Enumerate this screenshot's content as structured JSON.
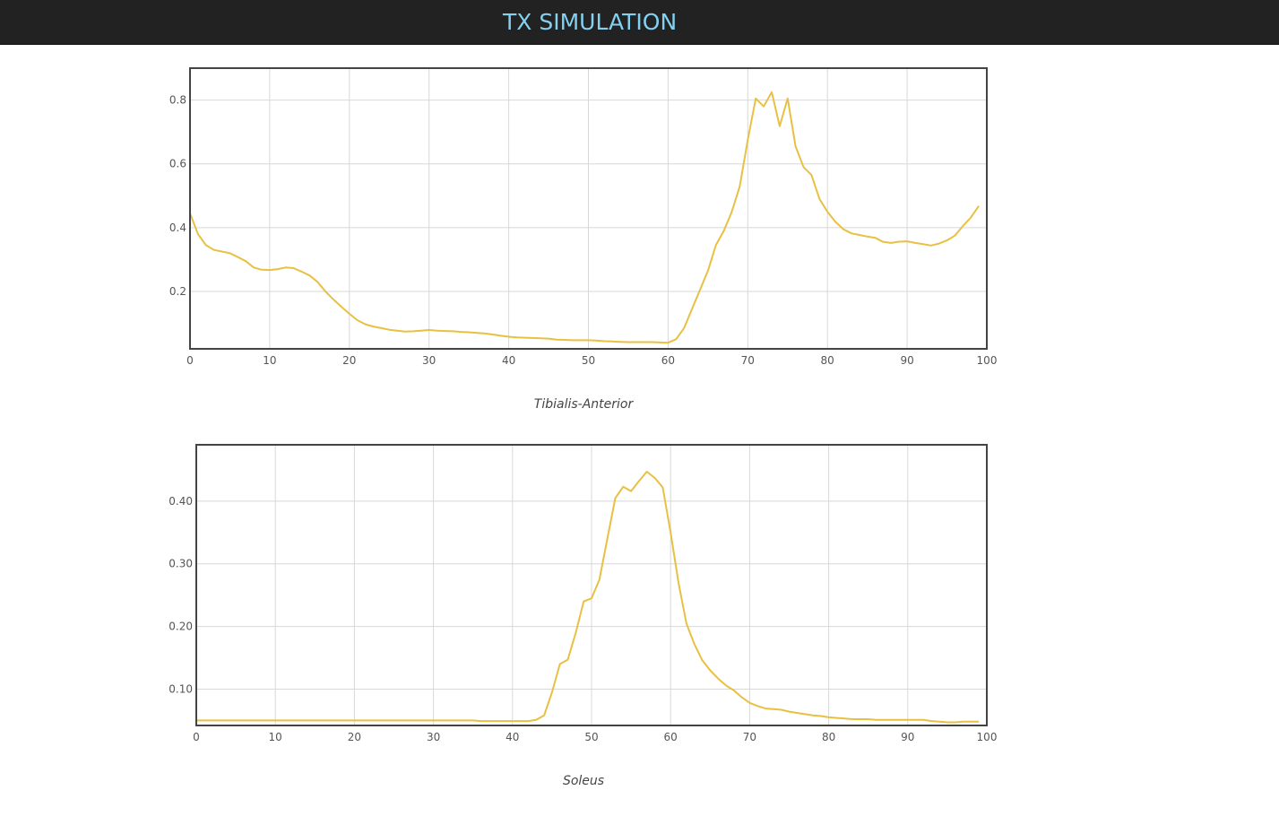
{
  "header": {
    "title": "TX SIMULATION"
  },
  "colors": {
    "line": "#e8c043",
    "header_bg": "#222222",
    "title": "#84d0f0",
    "frame": "#444444",
    "grid": "#d8d8d8"
  },
  "chart_data": [
    {
      "type": "line",
      "title": "Tibialis-Anterior",
      "xlim": [
        0,
        100
      ],
      "ylim": [
        0.02,
        0.9
      ],
      "xticks": [
        0,
        10,
        20,
        30,
        40,
        50,
        60,
        70,
        80,
        90,
        100
      ],
      "yticks": [
        0.2,
        0.4,
        0.6,
        0.8
      ],
      "ytick_labels": [
        "0.2",
        "0.4",
        "0.6",
        "0.8"
      ],
      "grid": true,
      "x": [
        0,
        1,
        2,
        3,
        4,
        5,
        6,
        7,
        8,
        9,
        10,
        11,
        12,
        13,
        14,
        15,
        16,
        17,
        18,
        19,
        20,
        21,
        22,
        23,
        24,
        25,
        26,
        27,
        28,
        29,
        30,
        31,
        32,
        33,
        34,
        35,
        36,
        37,
        38,
        39,
        40,
        41,
        42,
        43,
        44,
        45,
        46,
        47,
        48,
        49,
        50,
        51,
        52,
        53,
        54,
        55,
        56,
        57,
        58,
        59,
        60,
        61,
        62,
        63,
        64,
        65,
        66,
        67,
        68,
        69,
        70,
        71,
        72,
        73,
        74,
        75,
        76,
        77,
        78,
        79,
        80,
        81,
        82,
        83,
        84,
        85,
        86,
        87,
        88,
        89,
        90,
        91,
        92,
        93,
        94,
        95,
        96,
        97,
        98,
        99
      ],
      "y": [
        0.445,
        0.38,
        0.345,
        0.33,
        0.325,
        0.32,
        0.308,
        0.295,
        0.275,
        0.268,
        0.267,
        0.27,
        0.275,
        0.273,
        0.262,
        0.25,
        0.23,
        0.2,
        0.175,
        0.152,
        0.13,
        0.11,
        0.097,
        0.09,
        0.085,
        0.08,
        0.077,
        0.074,
        0.075,
        0.077,
        0.079,
        0.077,
        0.076,
        0.075,
        0.073,
        0.072,
        0.07,
        0.068,
        0.065,
        0.061,
        0.058,
        0.056,
        0.055,
        0.054,
        0.053,
        0.052,
        0.049,
        0.048,
        0.047,
        0.047,
        0.047,
        0.046,
        0.044,
        0.043,
        0.042,
        0.041,
        0.041,
        0.041,
        0.041,
        0.04,
        0.039,
        0.05,
        0.085,
        0.145,
        0.205,
        0.265,
        0.345,
        0.39,
        0.45,
        0.53,
        0.675,
        0.805,
        0.78,
        0.825,
        0.718,
        0.805,
        0.655,
        0.59,
        0.565,
        0.49,
        0.45,
        0.418,
        0.395,
        0.382,
        0.377,
        0.372,
        0.368,
        0.355,
        0.352,
        0.356,
        0.357,
        0.352,
        0.348,
        0.344,
        0.35,
        0.36,
        0.375,
        0.405,
        0.432,
        0.468
      ]
    },
    {
      "type": "line",
      "title": "Soleus",
      "xlim": [
        0,
        100
      ],
      "ylim": [
        0.042,
        0.49
      ],
      "xticks": [
        0,
        10,
        20,
        30,
        40,
        50,
        60,
        70,
        80,
        90,
        100
      ],
      "yticks": [
        0.1,
        0.2,
        0.3,
        0.4
      ],
      "ytick_labels": [
        "0.10",
        "0.20",
        "0.30",
        "0.40"
      ],
      "grid": true,
      "x": [
        0,
        1,
        2,
        3,
        4,
        5,
        6,
        7,
        8,
        9,
        10,
        11,
        12,
        13,
        14,
        15,
        16,
        17,
        18,
        19,
        20,
        21,
        22,
        23,
        24,
        25,
        26,
        27,
        28,
        29,
        30,
        31,
        32,
        33,
        34,
        35,
        36,
        37,
        38,
        39,
        40,
        41,
        42,
        43,
        44,
        45,
        46,
        47,
        48,
        49,
        50,
        51,
        52,
        53,
        54,
        55,
        56,
        57,
        58,
        59,
        60,
        61,
        62,
        63,
        64,
        65,
        66,
        67,
        68,
        69,
        70,
        71,
        72,
        73,
        74,
        75,
        76,
        77,
        78,
        79,
        80,
        81,
        82,
        83,
        84,
        85,
        86,
        87,
        88,
        89,
        90,
        91,
        92,
        93,
        94,
        95,
        96,
        97,
        98,
        99
      ],
      "y": [
        0.05,
        0.05,
        0.05,
        0.05,
        0.05,
        0.05,
        0.05,
        0.05,
        0.05,
        0.05,
        0.05,
        0.05,
        0.05,
        0.05,
        0.05,
        0.05,
        0.05,
        0.05,
        0.05,
        0.05,
        0.05,
        0.05,
        0.05,
        0.05,
        0.05,
        0.05,
        0.05,
        0.05,
        0.05,
        0.05,
        0.05,
        0.05,
        0.05,
        0.05,
        0.05,
        0.05,
        0.049,
        0.049,
        0.049,
        0.049,
        0.049,
        0.049,
        0.049,
        0.051,
        0.058,
        0.095,
        0.14,
        0.147,
        0.19,
        0.24,
        0.245,
        0.275,
        0.34,
        0.405,
        0.423,
        0.416,
        0.432,
        0.447,
        0.437,
        0.422,
        0.35,
        0.27,
        0.205,
        0.172,
        0.146,
        0.13,
        0.117,
        0.106,
        0.098,
        0.087,
        0.078,
        0.073,
        0.069,
        0.068,
        0.067,
        0.064,
        0.062,
        0.06,
        0.058,
        0.057,
        0.055,
        0.054,
        0.053,
        0.052,
        0.052,
        0.052,
        0.051,
        0.051,
        0.051,
        0.051,
        0.051,
        0.051,
        0.051,
        0.049,
        0.048,
        0.047,
        0.047,
        0.048,
        0.048,
        0.048
      ]
    }
  ]
}
